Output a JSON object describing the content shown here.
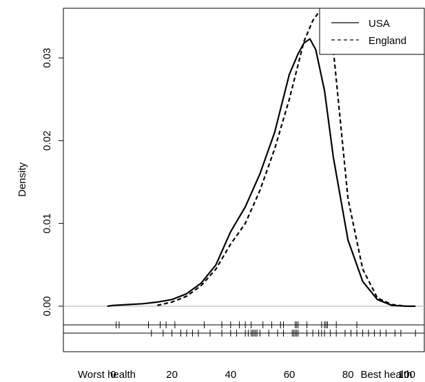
{
  "chart_data": {
    "type": "line",
    "ylabel": "Density",
    "xlim": [
      -17,
      106
    ],
    "ylim": [
      -0.0055,
      0.036
    ],
    "x_ticks": [
      0,
      20,
      40,
      60,
      80,
      100
    ],
    "x_tick_labels": [
      "0",
      "20",
      "40",
      "60",
      "80",
      "100"
    ],
    "y_ticks": [
      0.0,
      0.01,
      0.02,
      0.03
    ],
    "y_tick_labels": [
      "0.00",
      "0.01",
      "0.02",
      "0.03"
    ],
    "x_end_labels": {
      "left": "Worst health",
      "right": "Best health"
    },
    "legend": {
      "position": "top-right",
      "entries": [
        {
          "label": "USA",
          "linestyle": "solid"
        },
        {
          "label": "England",
          "linestyle": "dashed"
        }
      ]
    },
    "zero_line": {
      "y": 0,
      "color": "#bbbbbb"
    },
    "series": [
      {
        "name": "USA",
        "linestyle": "solid",
        "x": [
          -2,
          0,
          5,
          10,
          15,
          20,
          25,
          30,
          35,
          40,
          45,
          50,
          55,
          60,
          63,
          65,
          67,
          69,
          72,
          75,
          80,
          85,
          90,
          95,
          100,
          103
        ],
        "y": [
          0.0,
          0.0001,
          0.0002,
          0.0003,
          0.0005,
          0.0008,
          0.0015,
          0.0028,
          0.005,
          0.009,
          0.012,
          0.016,
          0.021,
          0.028,
          0.0305,
          0.0318,
          0.0323,
          0.031,
          0.026,
          0.018,
          0.008,
          0.003,
          0.0008,
          0.0001,
          0.0,
          0.0
        ]
      },
      {
        "name": "England",
        "linestyle": "dashed",
        "x": [
          15,
          20,
          25,
          30,
          35,
          40,
          45,
          50,
          55,
          60,
          65,
          68,
          70,
          72,
          75,
          80,
          85,
          90,
          95,
          100
        ],
        "y": [
          0.0001,
          0.0005,
          0.0012,
          0.0025,
          0.0045,
          0.0075,
          0.01,
          0.014,
          0.019,
          0.025,
          0.032,
          0.0345,
          0.0355,
          0.035,
          0.031,
          0.013,
          0.0045,
          0.001,
          0.0002,
          0.0
        ]
      }
    ],
    "rug": [
      {
        "name": "USA",
        "x": [
          1,
          2,
          12,
          16,
          18,
          21,
          31,
          37,
          40,
          43,
          45,
          47,
          51,
          54,
          57,
          58,
          62,
          62.5,
          63,
          66,
          71,
          72,
          72.5,
          73,
          76,
          83
        ]
      },
      {
        "name": "England",
        "x": [
          13,
          17,
          20,
          23,
          25,
          27,
          29,
          33,
          37,
          40,
          42,
          45,
          46,
          47,
          47.5,
          48,
          48.5,
          49,
          50,
          53,
          56,
          58,
          61,
          61.5,
          62,
          62.5,
          63,
          66,
          68,
          70,
          71,
          72,
          74,
          76,
          79,
          81,
          83,
          85,
          87,
          89,
          91,
          93,
          96,
          98,
          103
        ]
      }
    ]
  }
}
